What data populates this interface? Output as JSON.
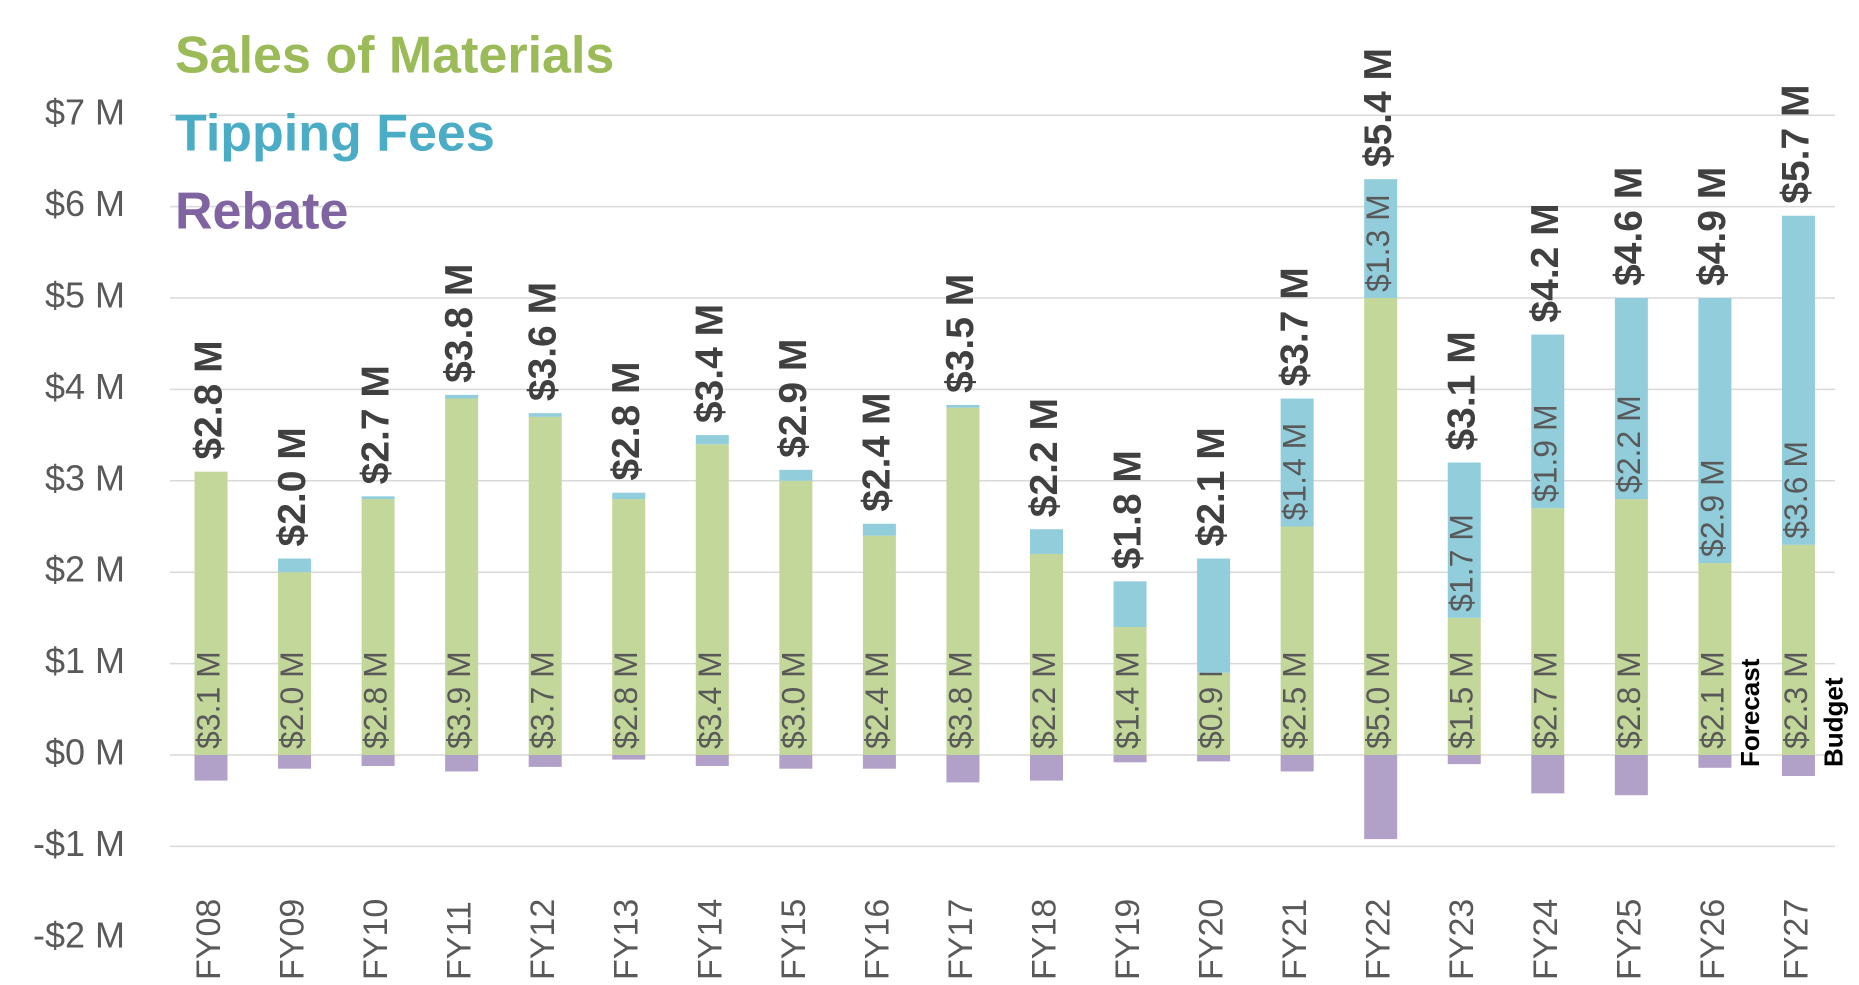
{
  "chart_data": {
    "type": "stacked-bar",
    "categories": [
      "FY08",
      "FY09",
      "FY10",
      "FY11",
      "FY12",
      "FY13",
      "FY14",
      "FY15",
      "FY16",
      "FY17",
      "FY18",
      "FY19",
      "FY20",
      "FY21",
      "FY22",
      "FY23",
      "FY24",
      "FY25",
      "FY26",
      "FY27"
    ],
    "series": [
      {
        "name": "Sales of Materials",
        "color": "#c4d79b",
        "legend_color": "#9bbb59",
        "values": [
          3.1,
          2.0,
          2.8,
          3.9,
          3.7,
          2.8,
          3.4,
          3.0,
          2.4,
          3.8,
          2.2,
          1.4,
          0.9,
          2.5,
          5.0,
          1.5,
          2.7,
          2.8,
          2.1,
          2.3
        ],
        "value_labels": [
          "$3.1 M",
          "$2.0 M",
          "$2.8 M",
          "$3.9 M",
          "$3.7 M",
          "$2.8 M",
          "$3.4 M",
          "$3.0 M",
          "$2.4 M",
          "$3.8 M",
          "$2.2 M",
          "$1.4 M",
          "$0.9 M",
          "$2.5 M",
          "$5.0 M",
          "$1.5 M",
          "$2.7 M",
          "$2.8 M",
          "$2.1 M",
          "$2.3 M"
        ]
      },
      {
        "name": "Tipping Fees",
        "color": "#92cddc",
        "legend_color": "#4bacc6",
        "values": [
          0,
          0.15,
          0.03,
          0.04,
          0.04,
          0.07,
          0.1,
          0.12,
          0.13,
          0.03,
          0.27,
          0.5,
          1.25,
          1.4,
          1.3,
          1.7,
          1.9,
          2.2,
          2.9,
          3.6
        ],
        "value_labels": [
          null,
          null,
          null,
          null,
          null,
          null,
          null,
          null,
          null,
          null,
          null,
          null,
          null,
          "$1.4 M",
          "$1.3 M",
          "$1.7 M",
          "$1.9 M",
          "$2.2 M",
          "$2.9 M",
          "$3.6 M"
        ]
      },
      {
        "name": "Rebate",
        "color": "#b1a0c7",
        "legend_color": "#8064a2",
        "values": [
          -0.28,
          -0.15,
          -0.12,
          -0.18,
          -0.13,
          -0.05,
          -0.12,
          -0.15,
          -0.15,
          -0.3,
          -0.28,
          -0.08,
          -0.07,
          -0.18,
          -0.92,
          -0.1,
          -0.42,
          -0.44,
          -0.14,
          -0.23
        ]
      }
    ],
    "totals": {
      "values": [
        2.8,
        2.0,
        2.7,
        3.8,
        3.6,
        2.8,
        3.4,
        2.9,
        2.4,
        3.5,
        2.2,
        1.8,
        2.1,
        3.7,
        5.4,
        3.1,
        4.2,
        4.6,
        4.9,
        5.7
      ],
      "value_labels": [
        "$2.8 M",
        "$2.0 M",
        "$2.7 M",
        "$3.8 M",
        "$3.6 M",
        "$2.8 M",
        "$3.4 M",
        "$2.9 M",
        "$2.4 M",
        "$3.5 M",
        "$2.2 M",
        "$1.8 M",
        "$2.1 M",
        "$3.7 M",
        "$5.4 M",
        "$3.1 M",
        "$4.2 M",
        "$4.6 M",
        "$4.9 M",
        "$5.7 M"
      ]
    },
    "annotations": [
      {
        "text": "Forecast",
        "category": 18
      },
      {
        "text": "Budget",
        "category": 19
      }
    ],
    "ylim": [
      -2,
      7
    ],
    "yticks": [
      {
        "value": -2,
        "label": "-$2 M"
      },
      {
        "value": -1,
        "label": "-$1 M"
      },
      {
        "value": 0,
        "label": "$0 M"
      },
      {
        "value": 1,
        "label": "$1 M"
      },
      {
        "value": 2,
        "label": "$2 M"
      },
      {
        "value": 3,
        "label": "$3 M"
      },
      {
        "value": 4,
        "label": "$4 M"
      },
      {
        "value": 5,
        "label": "$5 M"
      },
      {
        "value": 6,
        "label": "$6 M"
      },
      {
        "value": 7,
        "label": "$7 M"
      }
    ],
    "grid": true
  }
}
